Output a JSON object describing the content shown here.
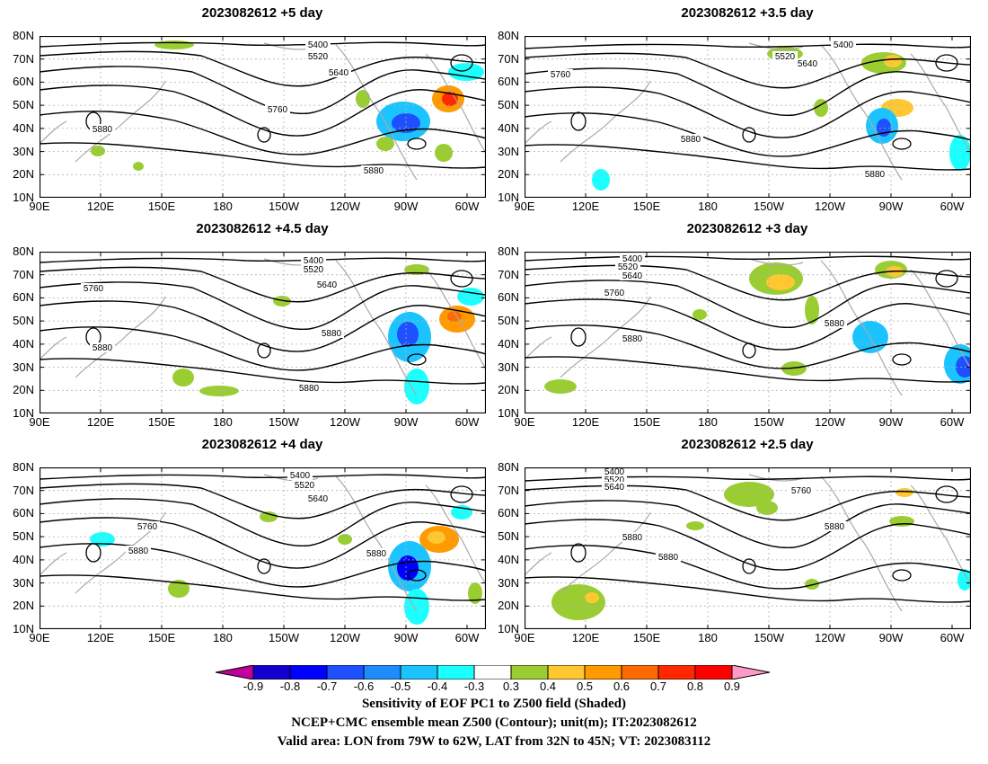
{
  "panels": [
    {
      "title": "2023082612  +5  day"
    },
    {
      "title": "2023082612  +3.5  day"
    },
    {
      "title": "2023082612  +4.5  day"
    },
    {
      "title": "2023082612  +3  day"
    },
    {
      "title": "2023082612  +4  day"
    },
    {
      "title": "2023082612  +2.5  day"
    }
  ],
  "y_labels": [
    "80N",
    "70N",
    "60N",
    "50N",
    "40N",
    "30N",
    "20N",
    "10N"
  ],
  "x_labels": [
    "90E",
    "120E",
    "150E",
    "180",
    "150W",
    "120W",
    "90W",
    "60W"
  ],
  "contour_levels": [
    "5400",
    "5520",
    "5640",
    "5760",
    "5880"
  ],
  "colorbar": {
    "labels": [
      "-0.9",
      "-0.8",
      "-0.7",
      "-0.6",
      "-0.5",
      "-0.4",
      "-0.3",
      "0.3",
      "0.4",
      "0.5",
      "0.6",
      "0.7",
      "0.8",
      "0.9"
    ],
    "colors": [
      "#c0009a",
      "#1400cc",
      "#0000ff",
      "#1e50ff",
      "#1c8cff",
      "#1cc4ff",
      "#1cffff",
      "#ffffff",
      "#9acd32",
      "#ffc830",
      "#ff9a00",
      "#ff6a00",
      "#ff2800",
      "#ff0000",
      "#ff9ac8"
    ]
  },
  "caption": {
    "line1": "Sensitivity of EOF PC1 to Z500 field (Shaded)",
    "line2": "NCEP+CMC ensemble mean Z500 (Contour); unit(m); IT:2023082612",
    "line3": "Valid area: LON from 79W to 62W, LAT from 32N to 45N; VT: 2023083112"
  }
}
